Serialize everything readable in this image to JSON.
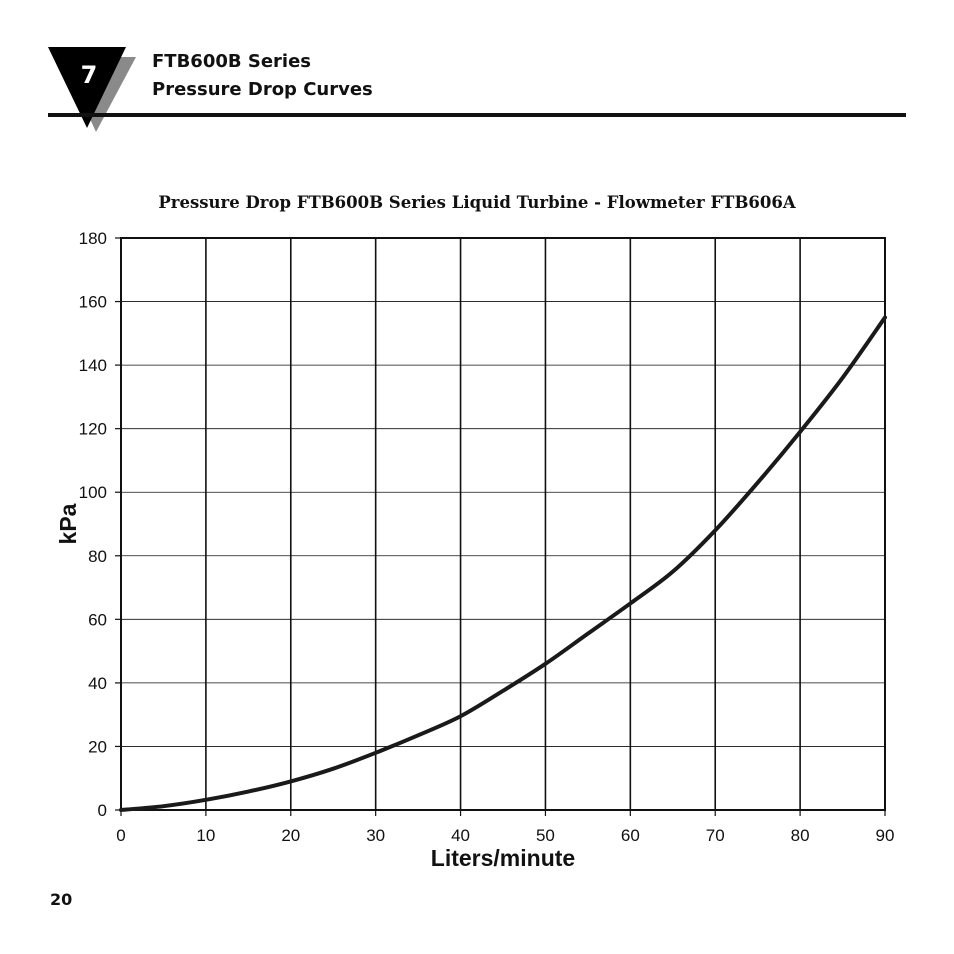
{
  "header": {
    "chapter_number": "7",
    "title_line1": "FTB600B Series",
    "title_line2": "Pressure Drop Curves"
  },
  "footer": {
    "page_number": "20"
  },
  "chart_data": {
    "type": "line",
    "title": "Pressure Drop FTB600B Series Liquid Turbine  - Flowmeter FTB606A",
    "xlabel": "Liters/minute",
    "ylabel": "kPa",
    "xlim": [
      0,
      90
    ],
    "ylim": [
      0,
      180
    ],
    "x_ticks": [
      0,
      10,
      20,
      30,
      40,
      50,
      60,
      70,
      80,
      90
    ],
    "y_ticks": [
      0,
      20,
      40,
      60,
      80,
      100,
      120,
      140,
      160,
      180
    ],
    "grid": true,
    "series": [
      {
        "x": [
          0,
          5,
          10,
          15,
          20,
          25,
          30,
          35,
          40,
          45,
          50,
          55,
          60,
          65,
          70,
          75,
          80,
          85,
          90
        ],
        "values": [
          0,
          1.2,
          3.2,
          5.8,
          9,
          13,
          18,
          23.5,
          29.5,
          37.5,
          46,
          55.5,
          65,
          75,
          88,
          103,
          119,
          136,
          155
        ]
      }
    ]
  }
}
